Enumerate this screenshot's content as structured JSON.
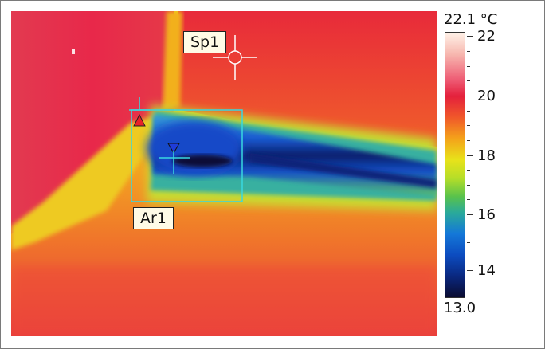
{
  "image": {
    "spot_label": "Sp1",
    "area_label": "Ar1"
  },
  "scale": {
    "max_value": "22.1 °C",
    "min_value": "13.0",
    "tick_labels": [
      "22",
      "20",
      "18",
      "16",
      "14"
    ]
  },
  "colors": {
    "marker_hot": "#e8202a",
    "marker_cold": "#1f3cd8",
    "area_box": "#38d8e0",
    "crosshair": "#ffffff"
  }
}
